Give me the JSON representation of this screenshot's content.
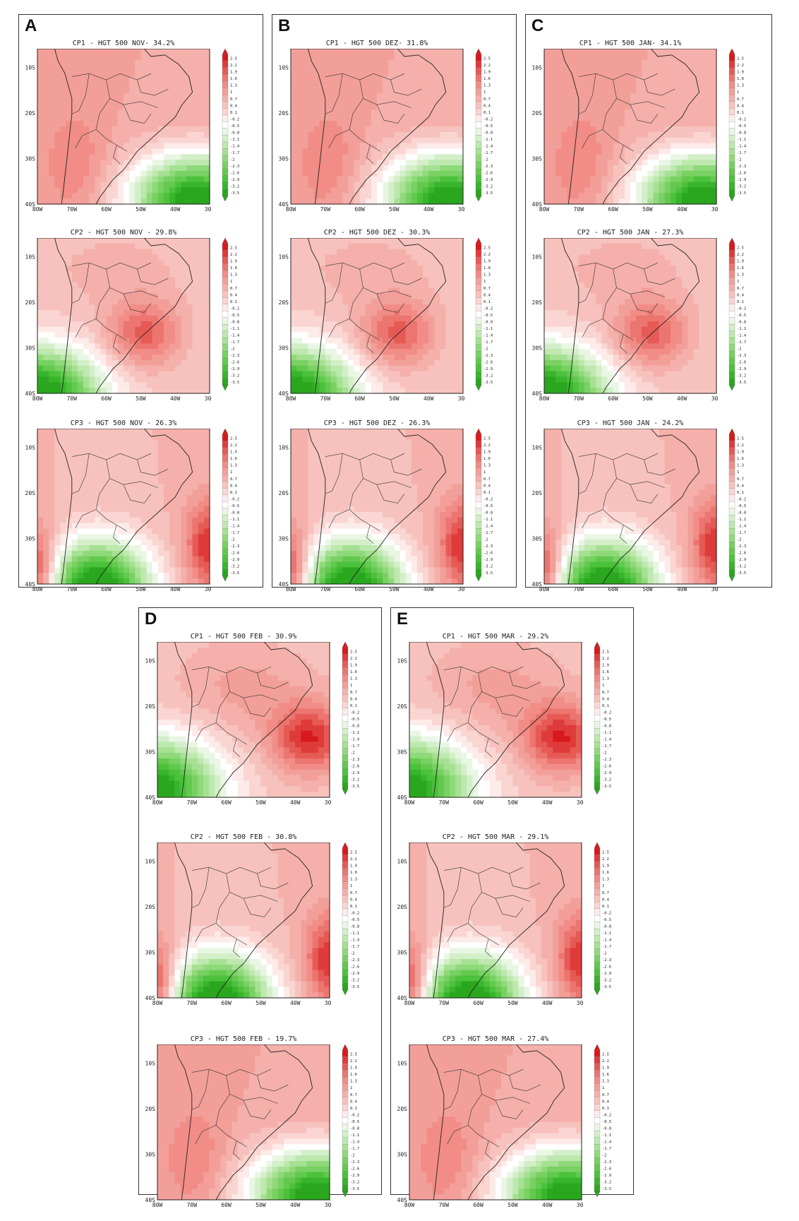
{
  "colorbar": {
    "levels": [
      "2.5",
      "2.2",
      "1.9",
      "1.6",
      "1.3",
      "1",
      "0.7",
      "0.4",
      "0.1",
      "-0.2",
      "-0.5",
      "-0.8",
      "-1.1",
      "-1.4",
      "-1.7",
      "-2",
      "-2.3",
      "-2.6",
      "-2.9",
      "-3.2",
      "-3.5"
    ],
    "colors": [
      "#d7191c",
      "#df3b3a",
      "#e65a55",
      "#ec7570",
      "#f18c86",
      "#f39f99",
      "#f5b0ab",
      "#f7c2bd",
      "#fad5d1",
      "#fcebe9",
      "#ffffff",
      "#e9f6e4",
      "#d3efc9",
      "#bde8ae",
      "#a6e193",
      "#8fd97a",
      "#78d162",
      "#62c94e",
      "#4cc13c",
      "#38b52c",
      "#2aa71f"
    ]
  },
  "axes": {
    "lat_labels": [
      "10S",
      "20S",
      "30S",
      "40S"
    ],
    "lon_labels": [
      "80W",
      "70W",
      "60W",
      "50W",
      "40W",
      "30W"
    ]
  },
  "panels": [
    {
      "letter": "A",
      "maps": [
        {
          "title": "CP1 - HGT 500 NOV- 34.2%",
          "pattern": "cp1"
        },
        {
          "title": "CP2 - HGT 500 NOV - 29.8%",
          "pattern": "cp2"
        },
        {
          "title": "CP3 - HGT 500 NOV - 26.3%",
          "pattern": "cp3"
        }
      ]
    },
    {
      "letter": "B",
      "maps": [
        {
          "title": "CP1 - HGT 500 DEZ- 31.8%",
          "pattern": "cp1"
        },
        {
          "title": "CP2 - HGT 500 DEZ - 30.3%",
          "pattern": "cp2"
        },
        {
          "title": "CP3 - HGT 500 DEZ - 26.3%",
          "pattern": "cp3"
        }
      ]
    },
    {
      "letter": "C",
      "maps": [
        {
          "title": "CP1 - HGT 500 JAN- 34.1%",
          "pattern": "cp1"
        },
        {
          "title": "CP2 - HGT 500 JAN - 27.3%",
          "pattern": "cp2"
        },
        {
          "title": "CP3 - HGT 500 JAN - 24.2%",
          "pattern": "cp3"
        }
      ]
    },
    {
      "letter": "D",
      "maps": [
        {
          "title": "CP1 - HGT 500 FEB - 30.9%",
          "pattern": "feb1"
        },
        {
          "title": "CP2 - HGT 500 FEB - 30.8%",
          "pattern": "cp3"
        },
        {
          "title": "CP3 - HGT 500 FEB - 19.7%",
          "pattern": "cp1"
        }
      ]
    },
    {
      "letter": "E",
      "maps": [
        {
          "title": "CP1 - HGT 500 MAR - 29.2%",
          "pattern": "feb1"
        },
        {
          "title": "CP2 - HGT 500 MAR - 29.1%",
          "pattern": "cp3"
        },
        {
          "title": "CP3 - HGT 500 MAR - 27.4%",
          "pattern": "cp1"
        }
      ]
    }
  ]
}
